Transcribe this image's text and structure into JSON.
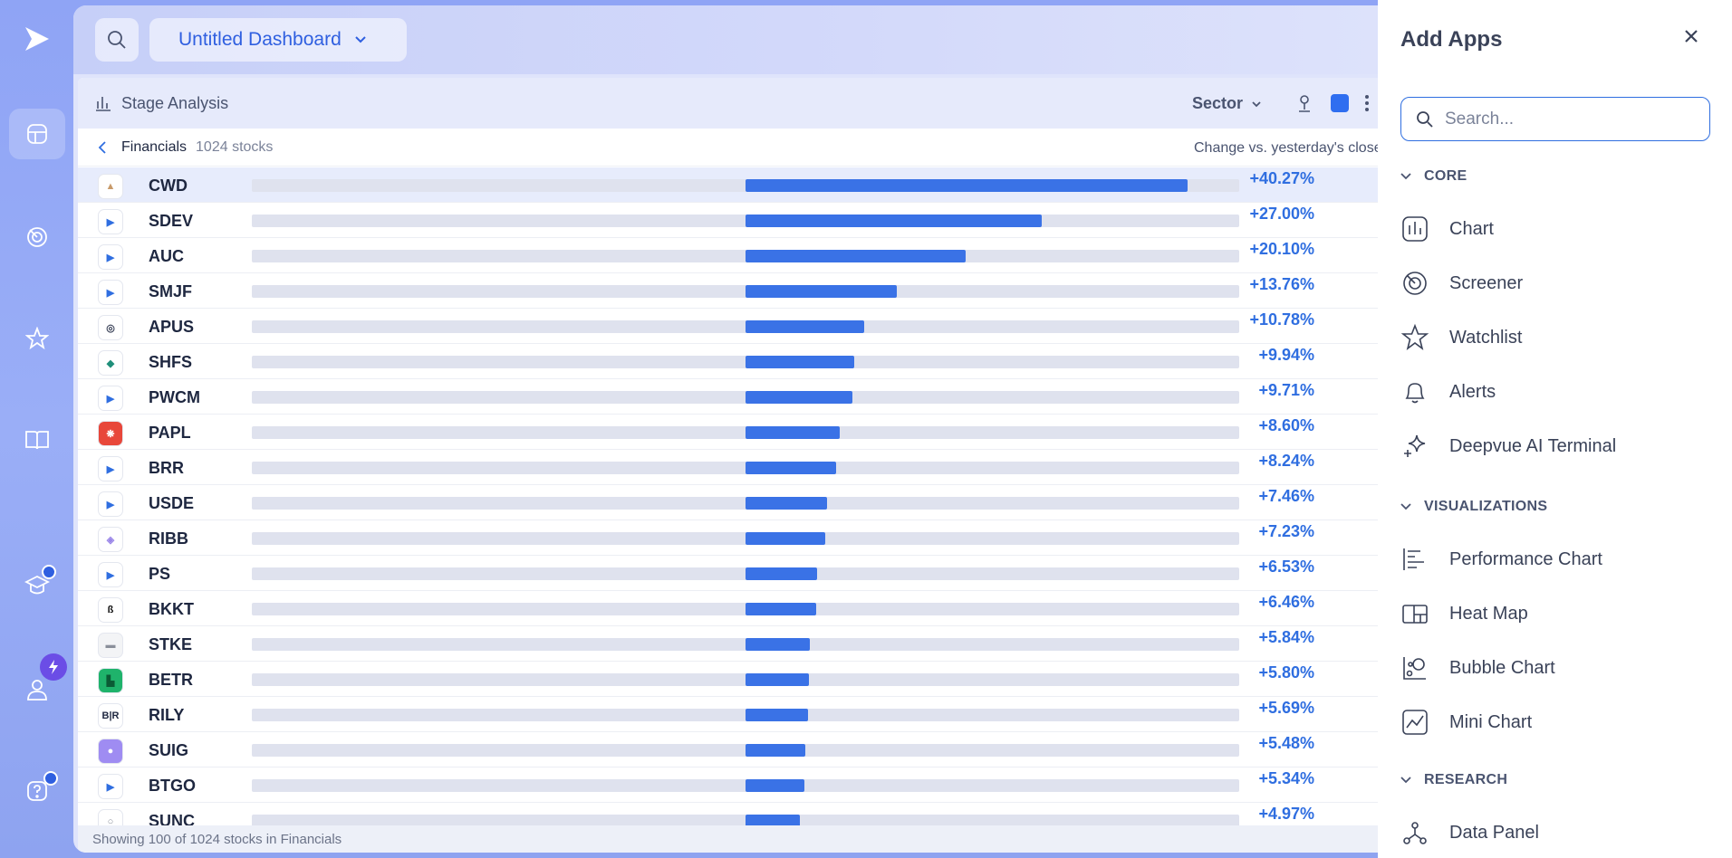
{
  "dashboard": {
    "title": "Untitled Dashboard"
  },
  "panel": {
    "title": "Stage Analysis",
    "group_by": "Sector",
    "accent_color": "#2f6ef0"
  },
  "subheader": {
    "sector": "Financials",
    "count": "1024 stocks",
    "change_label": "Change vs. yesterday's close"
  },
  "rows": [
    {
      "ticker": "CWD",
      "change": "+40.27%",
      "value": 40.27
    },
    {
      "ticker": "SDEV",
      "change": "+27.00%",
      "value": 27.0
    },
    {
      "ticker": "AUC",
      "change": "+20.10%",
      "value": 20.1
    },
    {
      "ticker": "SMJF",
      "change": "+13.76%",
      "value": 13.76
    },
    {
      "ticker": "APUS",
      "change": "+10.78%",
      "value": 10.78
    },
    {
      "ticker": "SHFS",
      "change": "+9.94%",
      "value": 9.94
    },
    {
      "ticker": "PWCM",
      "change": "+9.71%",
      "value": 9.71
    },
    {
      "ticker": "PAPL",
      "change": "+8.60%",
      "value": 8.6
    },
    {
      "ticker": "BRR",
      "change": "+8.24%",
      "value": 8.24
    },
    {
      "ticker": "USDE",
      "change": "+7.46%",
      "value": 7.46
    },
    {
      "ticker": "RIBB",
      "change": "+7.23%",
      "value": 7.23
    },
    {
      "ticker": "PS",
      "change": "+6.53%",
      "value": 6.53
    },
    {
      "ticker": "BKKT",
      "change": "+6.46%",
      "value": 6.46
    },
    {
      "ticker": "STKE",
      "change": "+5.84%",
      "value": 5.84
    },
    {
      "ticker": "BETR",
      "change": "+5.80%",
      "value": 5.8
    },
    {
      "ticker": "RILY",
      "change": "+5.69%",
      "value": 5.69
    },
    {
      "ticker": "SUIG",
      "change": "+5.48%",
      "value": 5.48
    },
    {
      "ticker": "BTGO",
      "change": "+5.34%",
      "value": 5.34
    },
    {
      "ticker": "SUNC",
      "change": "+4.97%",
      "value": 4.97
    }
  ],
  "footer": {
    "text": "Showing 100 of 1024 stocks in Financials"
  },
  "drawer": {
    "title": "Add Apps",
    "search_placeholder": "Search...",
    "sections": [
      {
        "title": "CORE",
        "items": [
          {
            "label": "Chart",
            "icon": "chart-icon"
          },
          {
            "label": "Screener",
            "icon": "screener-icon"
          },
          {
            "label": "Watchlist",
            "icon": "star-icon"
          },
          {
            "label": "Alerts",
            "icon": "bell-icon"
          },
          {
            "label": "Deepvue AI Terminal",
            "icon": "sparkle-icon"
          }
        ]
      },
      {
        "title": "VISUALIZATIONS",
        "items": [
          {
            "label": "Performance Chart",
            "icon": "performance-chart-icon"
          },
          {
            "label": "Heat Map",
            "icon": "heat-map-icon"
          },
          {
            "label": "Bubble Chart",
            "icon": "bubble-chart-icon"
          },
          {
            "label": "Mini Chart",
            "icon": "mini-chart-icon"
          }
        ]
      },
      {
        "title": "RESEARCH",
        "items": [
          {
            "label": "Data Panel",
            "icon": "data-panel-icon"
          }
        ]
      }
    ]
  }
}
